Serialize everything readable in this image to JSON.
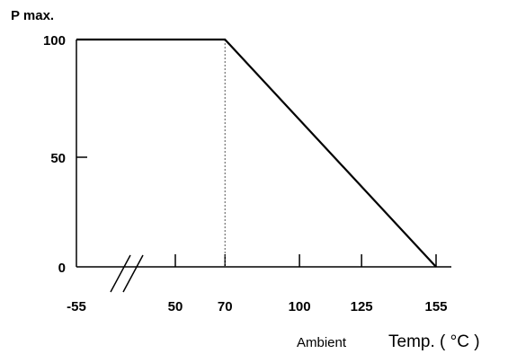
{
  "chart_data": {
    "type": "line",
    "title": "",
    "ylabel": "P max.",
    "xlabel_prefix": "Ambient",
    "xlabel_main": "Temp. ( °C )",
    "x_ticks": [
      "-55",
      "50",
      "70",
      "100",
      "125",
      "155"
    ],
    "y_ticks": [
      "100",
      "50",
      "0"
    ],
    "xlim": [
      -55,
      155
    ],
    "ylim": [
      0,
      100
    ],
    "axis_break": "between -55 and 50",
    "series": [
      {
        "x": [
          -55,
          70,
          155
        ],
        "y": [
          100,
          100,
          0
        ]
      }
    ],
    "reference_line": {
      "x": 70,
      "style": "dotted"
    },
    "grid": false
  }
}
